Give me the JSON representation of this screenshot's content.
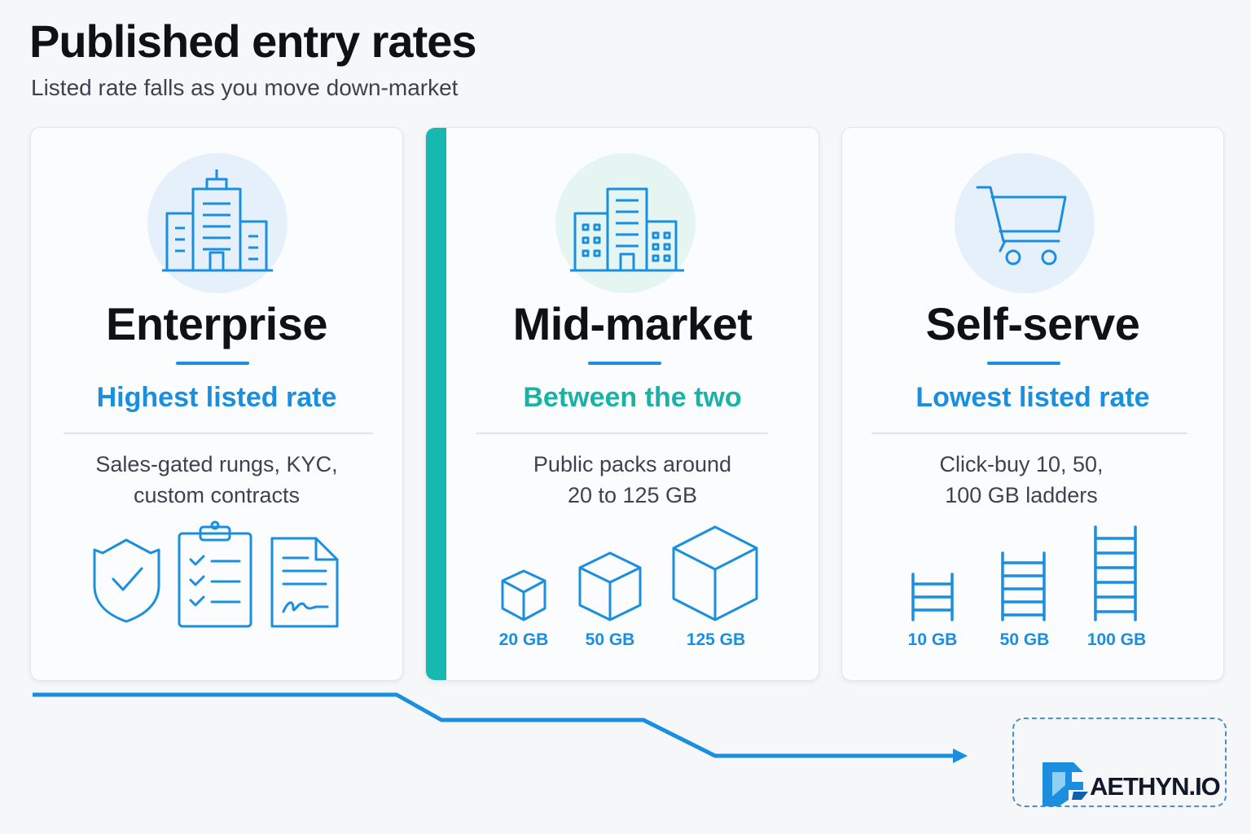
{
  "header": {
    "title": "Published entry rates",
    "subtitle": "Listed rate falls as you move down-market"
  },
  "tiers": [
    {
      "name": "Enterprise",
      "rate": "Highest listed rate",
      "desc_line1": "Sales-gated rungs, KYC,",
      "desc_line2": "custom contracts",
      "icon": "office-building-icon",
      "feature_icons": [
        "shield-check-icon",
        "clipboard-checklist-icon",
        "signed-contract-icon"
      ]
    },
    {
      "name": "Mid-market",
      "rate": "Between the two",
      "desc_line1": "Public packs around",
      "desc_line2": "20 to 125 GB",
      "icon": "building-cluster-icon",
      "packs": [
        "20 GB",
        "50 GB",
        "125 GB"
      ]
    },
    {
      "name": "Self-serve",
      "rate": "Lowest listed rate",
      "desc_line1": "Click-buy 10, 50,",
      "desc_line2": "100 GB ladders",
      "icon": "shopping-cart-icon",
      "ladders": [
        "10 GB",
        "50 GB",
        "100 GB"
      ]
    }
  ],
  "logo": {
    "text": "AETHYN.IO"
  },
  "colors": {
    "accent_blue": "#1a8fe0",
    "accent_teal": "#17b8b0"
  }
}
